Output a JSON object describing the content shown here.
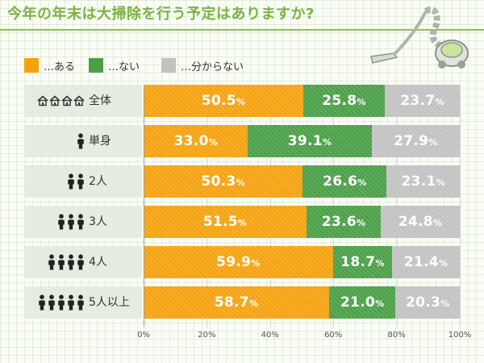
{
  "title": "今年の年末は大掃除を行う予定はありますか?",
  "legend": [
    {
      "label": "…ある",
      "color": "#f5a20f"
    },
    {
      "label": "…ない",
      "color": "#4a9f47"
    },
    {
      "label": "…分からない",
      "color": "#c2c2c2"
    }
  ],
  "unit": "%",
  "chart_data": {
    "type": "bar",
    "orientation": "horizontal",
    "stacked": true,
    "categories": [
      "全体",
      "単身",
      "2人",
      "3人",
      "4人",
      "5人以上"
    ],
    "series": [
      {
        "name": "…ある",
        "color": "#f5a20f",
        "values": [
          50.5,
          33.0,
          50.3,
          51.5,
          59.9,
          58.7
        ]
      },
      {
        "name": "…ない",
        "color": "#4a9f47",
        "values": [
          25.8,
          39.1,
          26.6,
          23.6,
          18.7,
          21.0
        ]
      },
      {
        "name": "…分からない",
        "color": "#c2c2c2",
        "values": [
          23.7,
          27.9,
          23.1,
          24.8,
          21.4,
          20.3
        ]
      }
    ],
    "row_icons": [
      {
        "icon": "house-icon",
        "count": 4
      },
      {
        "icon": "person-icon",
        "count": 1
      },
      {
        "icon": "person-icon",
        "count": 2
      },
      {
        "icon": "person-icon",
        "count": 3
      },
      {
        "icon": "person-icon",
        "count": 4
      },
      {
        "icon": "person-icon",
        "count": 5
      }
    ],
    "xlim": [
      0,
      100
    ],
    "xticks": [
      "0%",
      "20%",
      "40%",
      "60%",
      "80%",
      "100%"
    ],
    "xtick_values": [
      0,
      20,
      40,
      60,
      80,
      100
    ],
    "grid": true,
    "legend_position": "top-left"
  }
}
